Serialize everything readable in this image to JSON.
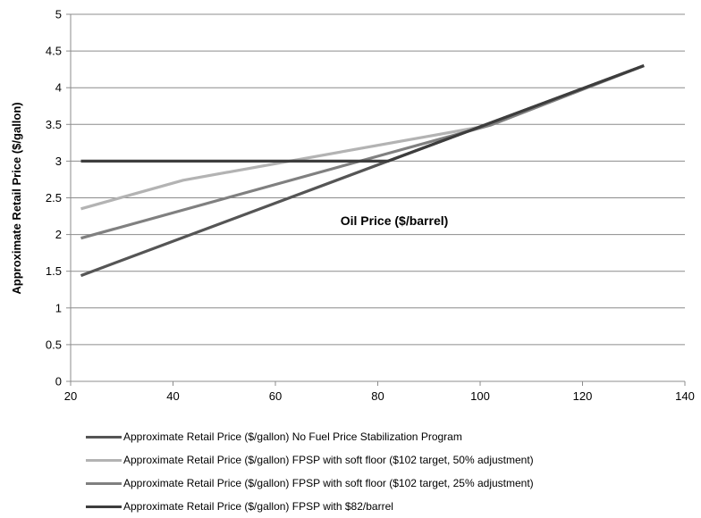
{
  "chart_data": {
    "type": "line",
    "title": "",
    "xlabel": "",
    "ylabel": "Approximate Retail Price ($/gallon)",
    "annotation": "Oil Price ($/barrel)",
    "xlim": [
      20,
      140
    ],
    "ylim": [
      0,
      5
    ],
    "x_ticks": [
      "20",
      "40",
      "60",
      "80",
      "100",
      "120",
      "140"
    ],
    "y_ticks": [
      "0",
      "0.5",
      "1",
      "1.5",
      "2",
      "2.5",
      "3",
      "3.5",
      "4",
      "4.5",
      "5"
    ],
    "grid": "horizontal",
    "legend_position": "bottom",
    "series": [
      {
        "name": "Approximate Retail Price ($/gallon) No Fuel Price Stabilization Program",
        "color": "#555555",
        "points": [
          [
            22,
            1.44
          ],
          [
            132,
            4.3
          ]
        ]
      },
      {
        "name": "Approximate Retail Price ($/gallon) FPSP with soft floor ($102 target, 50% adjustment)",
        "color": "#b3b3b3",
        "points": [
          [
            22,
            2.35
          ],
          [
            42,
            2.74
          ],
          [
            102,
            3.49
          ],
          [
            132,
            4.3
          ]
        ]
      },
      {
        "name": "Approximate Retail Price ($/gallon) FPSP with soft floor ($102 target, 25% adjustment)",
        "color": "#808080",
        "points": [
          [
            22,
            1.95
          ],
          [
            102,
            3.49
          ],
          [
            132,
            4.3
          ]
        ]
      },
      {
        "name": "Approximate Retail Price ($/gallon) FPSP with $82/barrel",
        "color": "#3d3d3d",
        "points": [
          [
            22,
            3.0
          ],
          [
            82,
            3.0
          ],
          [
            132,
            4.3
          ]
        ]
      }
    ]
  }
}
